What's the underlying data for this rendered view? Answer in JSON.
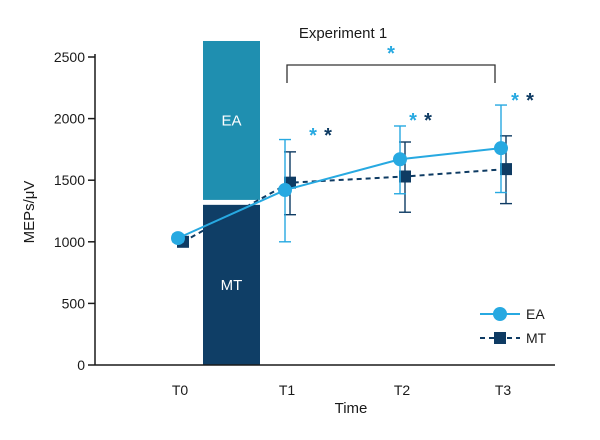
{
  "colors": {
    "ea": "#27a9e1",
    "mt": "#0e3b63",
    "ea_bar": "#1f8fb0",
    "mt_bar": "#0f3e66",
    "axis": "#1a1a1a",
    "bracket": "#333333"
  },
  "chart_data": {
    "type": "line",
    "title": "Experiment 1",
    "xlabel": "Time",
    "ylabel": "MEPs/μV",
    "ylim": [
      0,
      2500
    ],
    "yticks": [
      0,
      500,
      1000,
      1500,
      2000,
      2500
    ],
    "categories": [
      "T0",
      "T1",
      "T2",
      "T3"
    ],
    "series": [
      {
        "name": "EA",
        "style": "solid",
        "marker": "circle",
        "values": [
          1030,
          1420,
          1670,
          1760
        ],
        "err_low": [
          1000,
          1000,
          1390,
          1400
        ],
        "err_high": [
          1060,
          1830,
          1940,
          2110
        ]
      },
      {
        "name": "MT",
        "style": "dashed",
        "marker": "square",
        "values": [
          1000,
          1480,
          1530,
          1590
        ],
        "err_low": [
          980,
          1220,
          1240,
          1310
        ],
        "err_high": [
          1020,
          1730,
          1810,
          1860
        ]
      }
    ],
    "background_bars": [
      {
        "label": "EA",
        "from": 1340,
        "to": 2630
      },
      {
        "label": "MT",
        "from": 0,
        "to": 1300
      }
    ],
    "annotations": {
      "bracket": {
        "from": "T1",
        "to": "T3",
        "star": "*"
      },
      "significance": [
        {
          "at": "T1",
          "stars": [
            "*",
            "*"
          ]
        },
        {
          "at": "T2",
          "stars": [
            "*",
            "*"
          ]
        },
        {
          "at": "T3",
          "stars": [
            "*",
            "*"
          ]
        }
      ]
    },
    "legend": {
      "position": "bottom-right",
      "entries": [
        "EA",
        "MT"
      ]
    }
  }
}
